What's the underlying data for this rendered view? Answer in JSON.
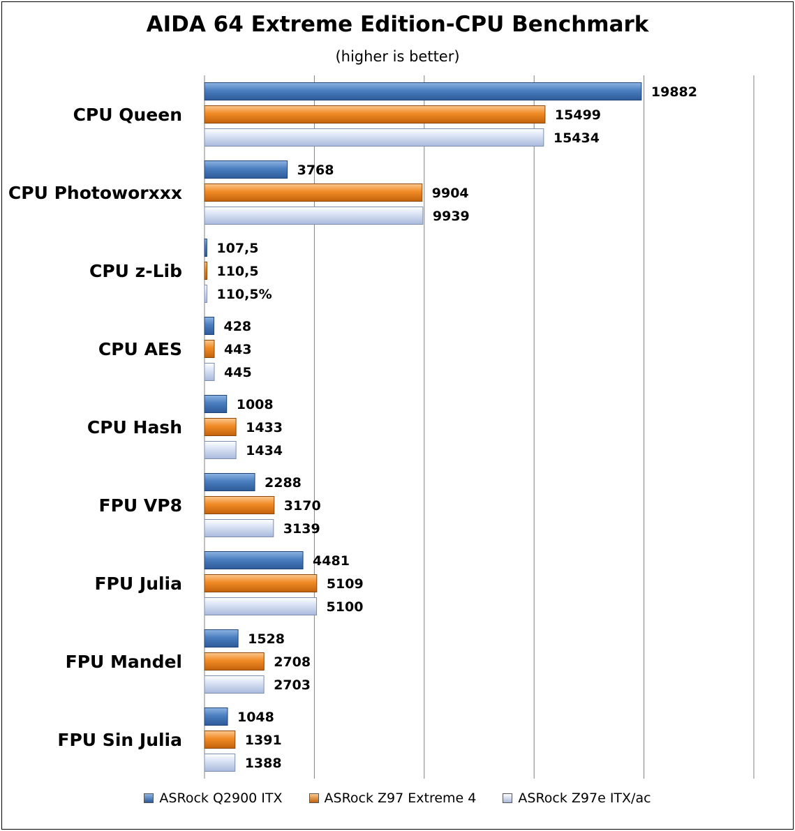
{
  "chart_data": {
    "type": "bar",
    "orientation": "horizontal",
    "title": "AIDA 64 Extreme Edition-CPU Benchmark",
    "subtitle": "(higher is better)",
    "categories": [
      "CPU Queen",
      "CPU Photoworxxx",
      "CPU z-Lib",
      "CPU AES",
      "CPU Hash",
      "FPU VP8",
      "FPU Julia",
      "FPU Mandel",
      "FPU Sin Julia"
    ],
    "series": [
      {
        "name": "ASRock Q2900 ITX",
        "color": "#4a7ebf",
        "values": [
          19882,
          3768,
          107.5,
          428,
          1008,
          2288,
          4481,
          1528,
          1048
        ],
        "labels": [
          "19882",
          "3768",
          "107,5",
          "428",
          "1008",
          "2288",
          "4481",
          "1528",
          "1048"
        ]
      },
      {
        "name": "ASRock Z97 Extreme 4",
        "color": "#f08a24",
        "values": [
          15499,
          9904,
          110.5,
          443,
          1433,
          3170,
          5109,
          2708,
          1391
        ],
        "labels": [
          "15499",
          "9904",
          "110,5",
          "443",
          "1433",
          "3170",
          "5109",
          "2708",
          "1391"
        ]
      },
      {
        "name": "ASRock Z97e ITX/ac",
        "color": "#c9d5ee",
        "values": [
          15434,
          9939,
          110.5,
          445,
          1434,
          3139,
          5100,
          2703,
          1388
        ],
        "labels": [
          "15434",
          "9939",
          "110,5%",
          "445",
          "1434",
          "3139",
          "5100",
          "2703",
          "1388"
        ]
      }
    ],
    "xlim": [
      0,
      25000
    ],
    "grid": true,
    "legend": "bottom"
  }
}
